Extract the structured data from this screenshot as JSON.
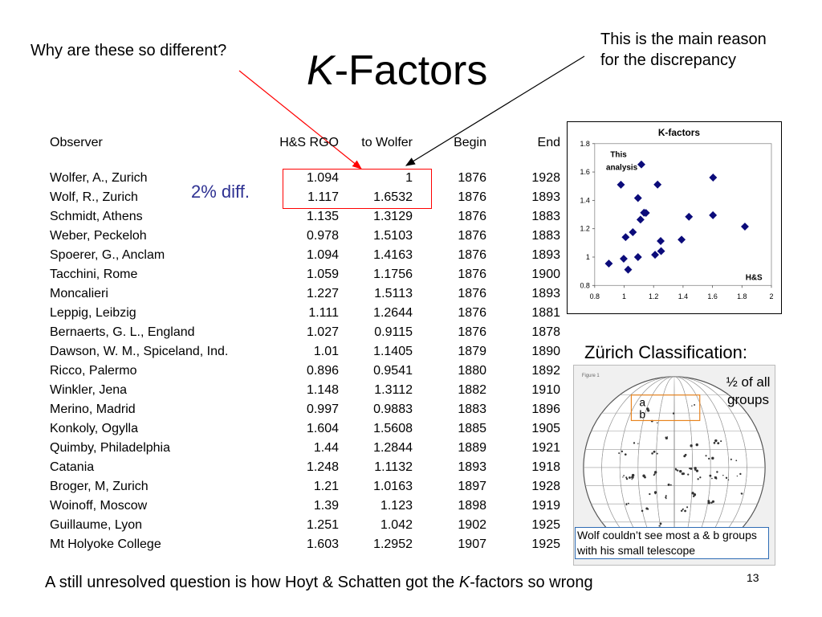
{
  "title": {
    "k": "K",
    "rest": "-Factors"
  },
  "annotations": {
    "left": "Why are these so different?",
    "right_line1": "This is the main reason",
    "right_line2": "for the discrepancy",
    "diff": "2% diff.",
    "zurich_title": "Zürich Classification:",
    "half_groups_line1": "½ of all",
    "half_groups_line2": "groups",
    "group_a": "a",
    "group_b": "b",
    "wolf_caption": "Wolf couldn’t see most a & b groups with his small telescope",
    "figure_label": "Figure 1"
  },
  "table": {
    "headers": [
      "Observer",
      "H&S RGO",
      "to Wolfer",
      "Begin",
      "End"
    ],
    "rows": [
      [
        "Wolfer, A., Zurich",
        "1.094",
        "1",
        "1876",
        "1928"
      ],
      [
        "Wolf, R., Zurich",
        "1.117",
        "1.6532",
        "1876",
        "1893"
      ],
      [
        "Schmidt, Athens",
        "1.135",
        "1.3129",
        "1876",
        "1883"
      ],
      [
        "Weber, Peckeloh",
        "0.978",
        "1.5103",
        "1876",
        "1883"
      ],
      [
        "Spoerer, G., Anclam",
        "1.094",
        "1.4163",
        "1876",
        "1893"
      ],
      [
        "Tacchini, Rome",
        "1.059",
        "1.1756",
        "1876",
        "1900"
      ],
      [
        "Moncalieri",
        "1.227",
        "1.5113",
        "1876",
        "1893"
      ],
      [
        "Leppig, Leibzig",
        "1.111",
        "1.2644",
        "1876",
        "1881"
      ],
      [
        "Bernaerts, G. L., England",
        "1.027",
        "0.9115",
        "1876",
        "1878"
      ],
      [
        "Dawson, W. M., Spiceland, Ind.",
        "1.01",
        "1.1405",
        "1879",
        "1890"
      ],
      [
        "Ricco, Palermo",
        "0.896",
        "0.9541",
        "1880",
        "1892"
      ],
      [
        "Winkler, Jena",
        "1.148",
        "1.3112",
        "1882",
        "1910"
      ],
      [
        "Merino, Madrid",
        "0.997",
        "0.9883",
        "1883",
        "1896"
      ],
      [
        "Konkoly, Ogylla",
        "1.604",
        "1.5608",
        "1885",
        "1905"
      ],
      [
        "Quimby, Philadelphia",
        "1.44",
        "1.2844",
        "1889",
        "1921"
      ],
      [
        "Catania",
        "1.248",
        "1.1132",
        "1893",
        "1918"
      ],
      [
        "Broger, M, Zurich",
        "1.21",
        "1.0163",
        "1897",
        "1928"
      ],
      [
        "Woinoff, Moscow",
        "1.39",
        "1.123",
        "1898",
        "1919"
      ],
      [
        "Guillaume, Lyon",
        "1.251",
        "1.042",
        "1902",
        "1925"
      ],
      [
        "Mt Holyoke College",
        "1.603",
        "1.2952",
        "1907",
        "1925"
      ]
    ]
  },
  "chart_data": {
    "type": "scatter",
    "title": "K-factors",
    "xlabel": "",
    "ylabel": "",
    "xlim": [
      0.8,
      2
    ],
    "ylim": [
      0.8,
      1.8
    ],
    "xticks": [
      "0.8",
      "1",
      "1.2",
      "1.4",
      "1.6",
      "1.8",
      "2"
    ],
    "yticks": [
      "0.8",
      "1",
      "1.2",
      "1.4",
      "1.6",
      "1.8"
    ],
    "grid": false,
    "annotations": {
      "this_analysis_line1": "This",
      "this_analysis_line2": "analysis",
      "hs": "H&S"
    },
    "points": [
      {
        "x": 0.896,
        "y": 0.9541
      },
      {
        "x": 0.978,
        "y": 1.5103
      },
      {
        "x": 0.997,
        "y": 0.9883
      },
      {
        "x": 1.01,
        "y": 1.1405
      },
      {
        "x": 1.027,
        "y": 0.9115
      },
      {
        "x": 1.059,
        "y": 1.1756
      },
      {
        "x": 1.094,
        "y": 1.4163
      },
      {
        "x": 1.094,
        "y": 1.0
      },
      {
        "x": 1.111,
        "y": 1.2644
      },
      {
        "x": 1.117,
        "y": 1.6532
      },
      {
        "x": 1.135,
        "y": 1.3129
      },
      {
        "x": 1.148,
        "y": 1.3112
      },
      {
        "x": 1.21,
        "y": 1.0163
      },
      {
        "x": 1.227,
        "y": 1.5113
      },
      {
        "x": 1.248,
        "y": 1.1132
      },
      {
        "x": 1.251,
        "y": 1.042
      },
      {
        "x": 1.39,
        "y": 1.123
      },
      {
        "x": 1.44,
        "y": 1.2844
      },
      {
        "x": 1.603,
        "y": 1.2952
      },
      {
        "x": 1.604,
        "y": 1.5608
      },
      {
        "x": 1.82,
        "y": 1.215
      }
    ],
    "marker_color": "#0b0b7a"
  },
  "footer": {
    "before": "A still unresolved question is how Hoyt & Schatten got the ",
    "k": "K",
    "after": "-factors so wrong"
  },
  "page_number": "13",
  "colors": {
    "accent_red": "#ff0000",
    "diff_blue": "#2e3192",
    "box_orange": "#e8841f",
    "caption_border": "#2e6cb5"
  }
}
